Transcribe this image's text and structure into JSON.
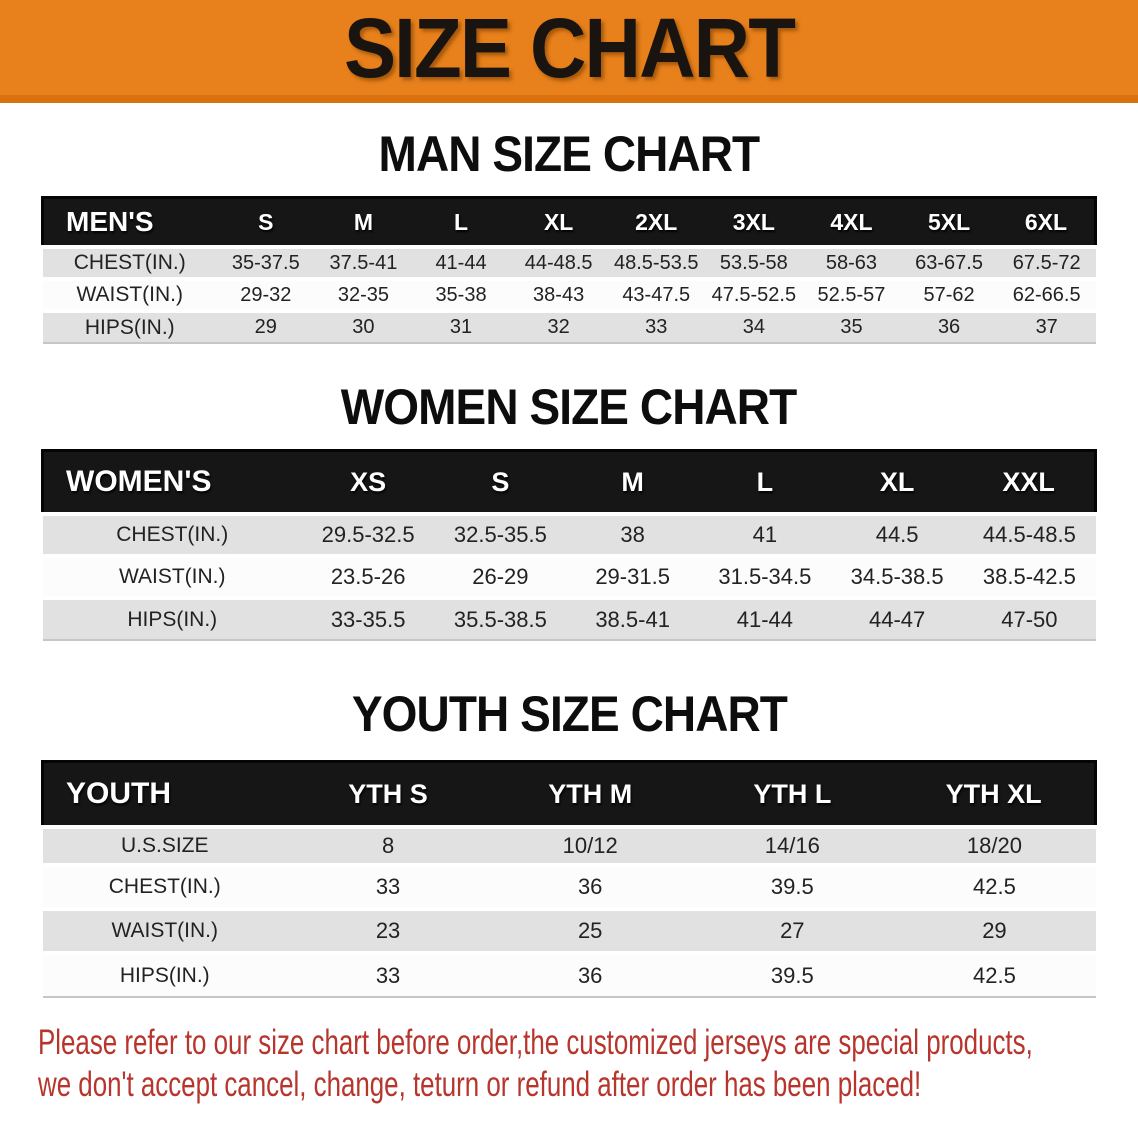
{
  "banner": {
    "title": "SIZE CHART"
  },
  "sections": [
    {
      "heading": "MAN SIZE CHART",
      "table": {
        "key": "mens",
        "label": "MEN'S",
        "columns": [
          "S",
          "M",
          "L",
          "XL",
          "2XL",
          "3XL",
          "4XL",
          "5XL",
          "6XL"
        ],
        "rows": [
          {
            "label": "CHEST(IN.)",
            "values": [
              "35-37.5",
              "37.5-41",
              "41-44",
              "44-48.5",
              "48.5-53.5",
              "53.5-58",
              "58-63",
              "63-67.5",
              "67.5-72"
            ]
          },
          {
            "label": "WAIST(IN.)",
            "values": [
              "29-32",
              "32-35",
              "35-38",
              "38-43",
              "43-47.5",
              "47.5-52.5",
              "52.5-57",
              "57-62",
              "62-66.5"
            ]
          },
          {
            "label": "HIPS(IN.)",
            "values": [
              "29",
              "30",
              "31",
              "32",
              "33",
              "34",
              "35",
              "36",
              "37"
            ]
          }
        ]
      }
    },
    {
      "heading": "WOMEN SIZE CHART",
      "table": {
        "key": "womens",
        "label": "WOMEN'S",
        "columns": [
          "XS",
          "S",
          "M",
          "L",
          "XL",
          "XXL"
        ],
        "rows": [
          {
            "label": "CHEST(IN.)",
            "values": [
              "29.5-32.5",
              "32.5-35.5",
              "38",
              "41",
              "44.5",
              "44.5-48.5"
            ]
          },
          {
            "label": "WAIST(IN.)",
            "values": [
              "23.5-26",
              "26-29",
              "29-31.5",
              "31.5-34.5",
              "34.5-38.5",
              "38.5-42.5"
            ]
          },
          {
            "label": "HIPS(IN.)",
            "values": [
              "33-35.5",
              "35.5-38.5",
              "38.5-41",
              "41-44",
              "44-47",
              "47-50"
            ]
          }
        ]
      }
    },
    {
      "heading": "YOUTH SIZE CHART",
      "table": {
        "key": "youth",
        "label": "YOUTH",
        "columns": [
          "YTH S",
          "YTH M",
          "YTH L",
          "YTH XL"
        ],
        "rows": [
          {
            "label": "U.S.SIZE",
            "values": [
              "8",
              "10/12",
              "14/16",
              "18/20"
            ]
          },
          {
            "label": "CHEST(IN.)",
            "values": [
              "33",
              "36",
              "39.5",
              "42.5"
            ]
          },
          {
            "label": "WAIST(IN.)",
            "values": [
              "23",
              "25",
              "27",
              "29"
            ]
          },
          {
            "label": "HIPS(IN.)",
            "values": [
              "33",
              "36",
              "39.5",
              "42.5"
            ]
          }
        ]
      }
    }
  ],
  "note": {
    "lines": [
      "Please refer to our size chart before order,the customized jerseys are special products,",
      "we don't accept cancel, change, teturn or refund after order has been placed!"
    ]
  },
  "colors": {
    "banner_bg": "#E8811B",
    "banner_text": "#1A1410",
    "table_header_bg": "#161616",
    "row_gray": "#E1E1E1",
    "row_white": "#FCFCFC",
    "note_red": "#B7352D"
  }
}
